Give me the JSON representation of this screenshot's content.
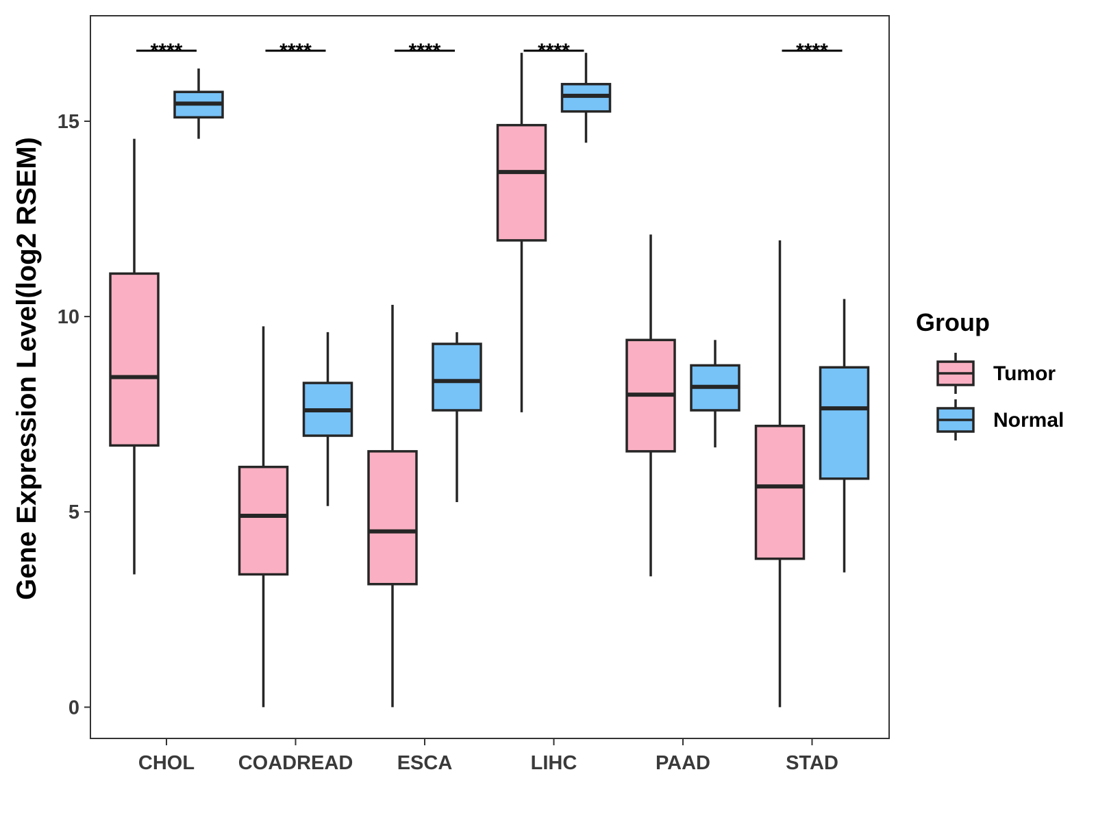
{
  "chart_data": {
    "type": "boxplot",
    "title": "",
    "xlabel": "",
    "ylabel": "Gene Expression Level(log2 RSEM)",
    "ylim": [
      -0.8,
      17.7
    ],
    "yticks": [
      0,
      5,
      10,
      15
    ],
    "grid": false,
    "legend": {
      "title": "Group",
      "position": "right",
      "entries": [
        "Tumor",
        "Normal"
      ]
    },
    "categories": [
      "CHOL",
      "COADREAD",
      "ESCA",
      "LIHC",
      "PAAD",
      "STAD"
    ],
    "series": [
      {
        "name": "Tumor",
        "color": "#FAB0C2",
        "boxes": [
          {
            "min": 3.4,
            "q1": 6.7,
            "median": 8.45,
            "q3": 11.1,
            "max": 14.55
          },
          {
            "min": 0.0,
            "q1": 3.4,
            "median": 4.9,
            "q3": 6.15,
            "max": 9.75
          },
          {
            "min": 0.0,
            "q1": 3.15,
            "median": 4.5,
            "q3": 6.55,
            "max": 10.3
          },
          {
            "min": 7.55,
            "q1": 11.95,
            "median": 13.7,
            "q3": 14.9,
            "max": 16.75
          },
          {
            "min": 3.35,
            "q1": 6.55,
            "median": 8.0,
            "q3": 9.4,
            "max": 12.1
          },
          {
            "min": 0.0,
            "q1": 3.8,
            "median": 5.65,
            "q3": 7.2,
            "max": 11.95
          }
        ]
      },
      {
        "name": "Normal",
        "color": "#77C2F7",
        "boxes": [
          {
            "min": 14.55,
            "q1": 15.1,
            "median": 15.45,
            "q3": 15.75,
            "max": 16.35
          },
          {
            "min": 5.15,
            "q1": 6.95,
            "median": 7.6,
            "q3": 8.3,
            "max": 9.6
          },
          {
            "min": 5.25,
            "q1": 7.6,
            "median": 8.35,
            "q3": 9.3,
            "max": 9.6
          },
          {
            "min": 14.45,
            "q1": 15.25,
            "median": 15.65,
            "q3": 15.95,
            "max": 16.75
          },
          {
            "min": 6.65,
            "q1": 7.6,
            "median": 8.2,
            "q3": 8.75,
            "max": 9.4
          },
          {
            "min": 3.45,
            "q1": 5.85,
            "median": 7.65,
            "q3": 8.7,
            "max": 10.45
          }
        ]
      }
    ],
    "annotations": [
      {
        "category": "CHOL",
        "label": "****"
      },
      {
        "category": "COADREAD",
        "label": "****"
      },
      {
        "category": "ESCA",
        "label": "****"
      },
      {
        "category": "LIHC",
        "label": "****"
      },
      {
        "category": "STAD",
        "label": "****"
      }
    ]
  }
}
